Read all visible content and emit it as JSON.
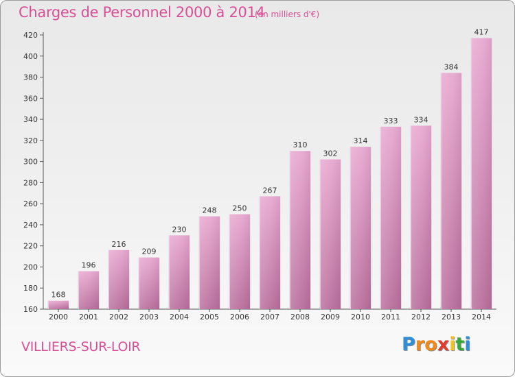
{
  "header": {
    "title": "Charges de Personnel 2000 à 2014",
    "units": "(en milliers d'€)"
  },
  "footer": {
    "city": "VILLIERS-SUR-LOIR",
    "logo": [
      "P",
      "r",
      "o",
      "x",
      "i",
      "t",
      "i"
    ]
  },
  "colors": {
    "title": "#d94f95",
    "bar_top": "#e8a8d0",
    "bar_bottom": "#b86e9c",
    "logo_letters": [
      "#2f8fd6",
      "#f08a1c",
      "#f08a1c",
      "#e33a2c",
      "#f6c418",
      "#39a838",
      "#2f8fd6"
    ]
  },
  "chart_data": {
    "type": "bar",
    "title": "Charges de Personnel 2000 à 2014",
    "subtitle": "(en milliers d'€)",
    "xlabel": "",
    "ylabel": "",
    "categories": [
      "2000",
      "2001",
      "2002",
      "2003",
      "2004",
      "2005",
      "2006",
      "2007",
      "2008",
      "2009",
      "2010",
      "2011",
      "2012",
      "2013",
      "2014"
    ],
    "values": [
      168,
      196,
      216,
      209,
      230,
      248,
      250,
      267,
      310,
      302,
      314,
      333,
      334,
      384,
      417
    ],
    "value_labels": [
      "168",
      "196",
      "216",
      "209",
      "230",
      "248",
      "250",
      "267",
      "310",
      "302",
      "314",
      "333",
      "334",
      "384",
      "417"
    ],
    "ylim": [
      160,
      420
    ],
    "yticks": [
      "160",
      "180",
      "200",
      "220",
      "240",
      "260",
      "280",
      "300",
      "320",
      "340",
      "360",
      "380",
      "400",
      "420"
    ],
    "grid": false,
    "legend": "none"
  }
}
